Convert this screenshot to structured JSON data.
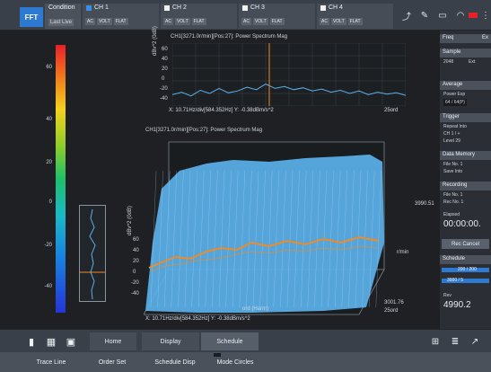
{
  "topbar": {
    "fft_label": "FFT",
    "condition": {
      "label": "Condition",
      "sub": "Last Live"
    },
    "channels": [
      {
        "name": "CH 1",
        "color": "#3a8ee6",
        "opts": [
          "AC",
          "VOLT",
          "FLAT"
        ]
      },
      {
        "name": "CH 2",
        "color": "#f0f0f0",
        "opts": [
          "AC",
          "VOLT",
          "FLAT"
        ]
      },
      {
        "name": "CH 3",
        "color": "#f0f0f0",
        "opts": [
          "AC",
          "VOLT",
          "FLAT"
        ]
      },
      {
        "name": "CH 4",
        "color": "#f0f0f0",
        "opts": [
          "AC",
          "VOLT",
          "FLAT"
        ]
      }
    ],
    "tool_icons": [
      "cursor-icon",
      "pen-icon",
      "print-icon",
      "wifi-icon",
      "battery-icon",
      "more-icon"
    ]
  },
  "color_scale": {
    "ticks": [
      "60",
      "40",
      "20",
      "0",
      "-20",
      "-40"
    ]
  },
  "top_plot": {
    "title": "CH1[3271.0r/min][Pos:27]: Power Spectrum Mag",
    "ylabel": "dBv^2 (0dB)",
    "yticks": [
      "60",
      "40",
      "20",
      "0",
      "-20",
      "-40"
    ],
    "readout": "X: 10.71Hz/div[584.352Hz] Y: -0.38dBm/s^2",
    "x_end_label": "25ord"
  },
  "bottom_plot": {
    "title": "CH1[3271.0r/min][Pos:27]: Power Spectrum Mag",
    "ylabel": "dBv^2 (0dB)",
    "yticks": [
      "60",
      "40",
      "20",
      "0",
      "-20",
      "-40"
    ],
    "xlabel": "ord (Harm)",
    "zlabel": "r/min",
    "z_top": "3990.51",
    "z_bottom": "3001.76",
    "x_end": "25ord",
    "readout": "X: 10.71Hz/div[584.352Hz] Y: -0.38dBm/s^2"
  },
  "right_panel": {
    "freq": {
      "head": "Freq",
      "value": "Ex"
    },
    "sample": {
      "head": "Sample",
      "lines": [
        "2048",
        "Ext"
      ]
    },
    "average": {
      "head": "Average",
      "lines": [
        "Power Exp"
      ],
      "box": "64 / 64(P)"
    },
    "trigger": {
      "head": "Trigger",
      "lines": [
        "Repeat  Into",
        "CH 1  /  +",
        "Level   29"
      ]
    },
    "data_memory": {
      "head": "Data Memory",
      "lines": [
        "File No.  1",
        "Save   Into"
      ]
    },
    "recording": {
      "head": "Recording",
      "lines": [
        "File No.  1",
        "Rec No.  1"
      ]
    },
    "elapsed_label": "Elapsed",
    "elapsed": "00:00:00.",
    "rec_cancel": "Rec Cancel",
    "schedule": {
      "head": "Schedule",
      "rows": [
        "200 / 200",
        "3000 / 5"
      ]
    },
    "rev_label": "Rev",
    "rev_value": "4990.2"
  },
  "bottom_nav": {
    "icons": [
      "bar-chart-icon",
      "grid-icon",
      "image-icon"
    ],
    "tabs": [
      "Home",
      "Display",
      "Schedule"
    ],
    "right_icons": [
      "add-icon",
      "list-icon",
      "export-icon"
    ]
  },
  "func_bar": {
    "buttons": [
      "Trace Line",
      "Order Set",
      "Schedule Disp",
      "Mode Circles"
    ]
  },
  "top_plot_series": {
    "x": [
      0,
      1,
      2,
      3,
      4,
      5,
      6,
      7,
      8,
      9,
      10,
      11,
      12,
      13,
      14,
      15,
      16,
      17,
      18,
      19,
      20,
      21,
      22,
      23,
      24,
      25
    ],
    "y": [
      -22,
      -18,
      -24,
      -15,
      -20,
      -12,
      -19,
      -16,
      -10,
      -14,
      -5,
      -12,
      -9,
      -14,
      -11,
      -16,
      -13,
      -18,
      -15,
      -20,
      -16,
      -22,
      -18,
      -21,
      -19,
      -23
    ]
  }
}
